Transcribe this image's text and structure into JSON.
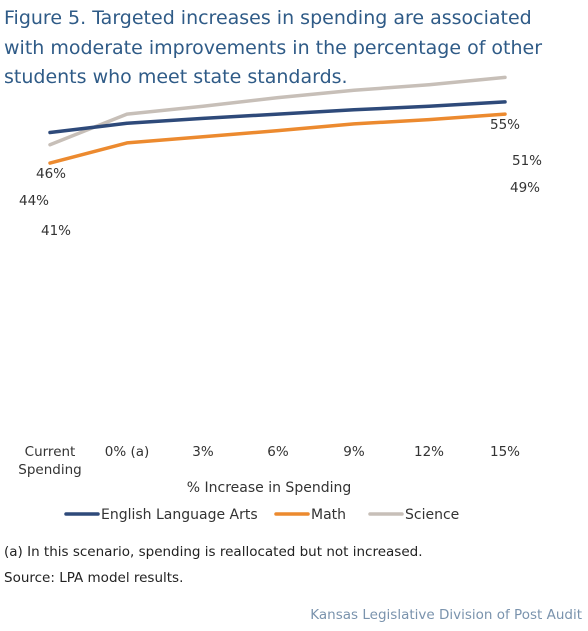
{
  "chart_data": {
    "type": "line",
    "title": "Figure 5. Targeted increases in spending are associated with moderate improvements in the percentage of other students who meet state standards.",
    "categories": [
      "Current Spending",
      "0% (a)",
      "3%",
      "6%",
      "9%",
      "12%",
      "15%"
    ],
    "xlabel": "% Increase in Spending",
    "ylabel": "",
    "ylim": [
      0,
      60
    ],
    "grid": false,
    "legend": "bottom",
    "series": [
      {
        "name": "English Language Arts",
        "color": "#2e4a7a",
        "values": [
          46,
          47.5,
          48.3,
          49,
          49.7,
          50.3,
          51
        ],
        "start_label": "46%",
        "end_label": "51%"
      },
      {
        "name": "Math",
        "color": "#ec8a2f",
        "values": [
          41,
          44.3,
          45.3,
          46.3,
          47.4,
          48.1,
          49
        ],
        "start_label": "41%",
        "end_label": "49%"
      },
      {
        "name": "Science",
        "color": "#c7bfb8",
        "values": [
          44,
          49,
          50.3,
          51.7,
          52.9,
          53.8,
          55
        ],
        "start_label": "44%",
        "end_label": "55%"
      }
    ]
  },
  "notes": {
    "footnote": "(a) In this scenario, spending is reallocated but not increased.",
    "source": "Source: LPA model results."
  },
  "footer": "Kansas Legislative Division of Post Audit"
}
